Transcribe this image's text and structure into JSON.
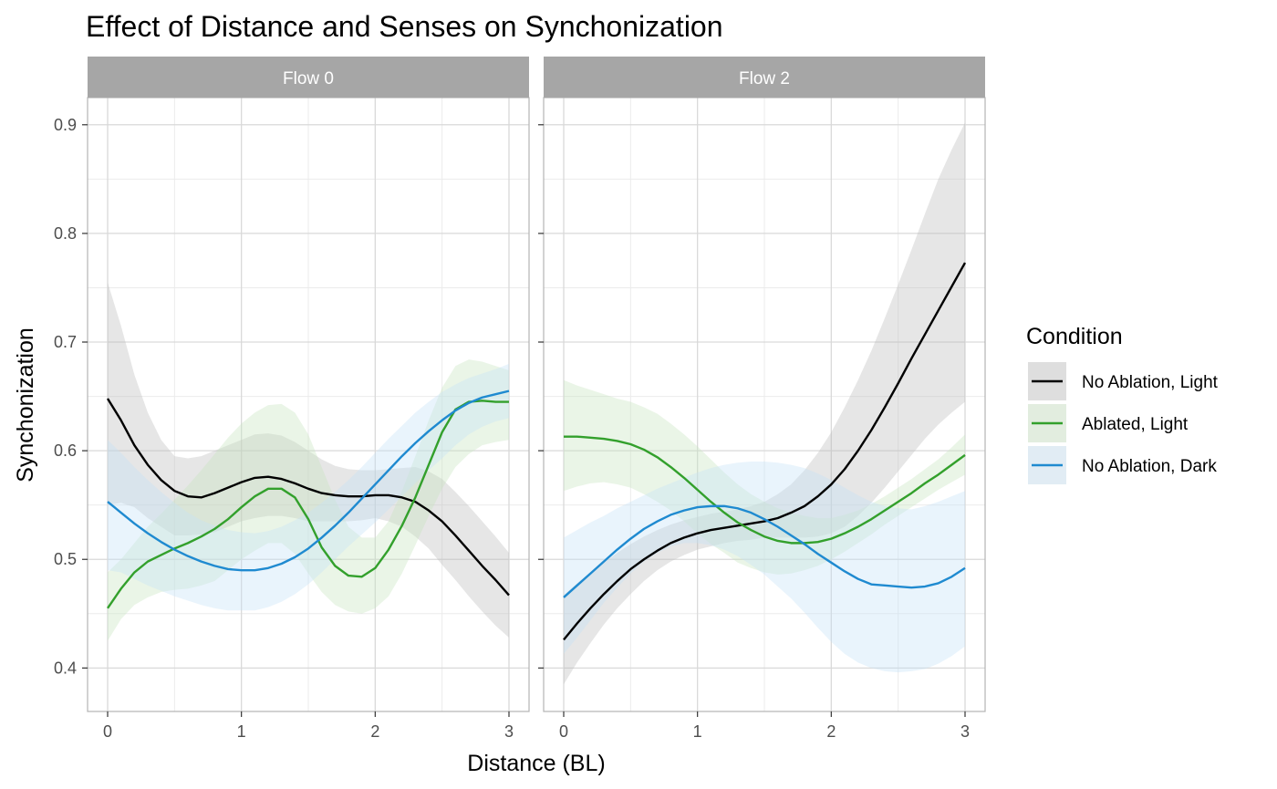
{
  "chart_data": {
    "type": "line",
    "title": "Effect of Distance and Senses on Synchonization",
    "xlabel": "Distance (BL)",
    "ylabel": "Synchonization",
    "xlim": [
      -0.15,
      3.15
    ],
    "ylim": [
      0.36,
      0.925
    ],
    "x_ticks": [
      0,
      1,
      2,
      3
    ],
    "y_ticks": [
      0.4,
      0.5,
      0.6,
      0.7,
      0.8,
      0.9
    ],
    "x_tick_labels": [
      "0",
      "1",
      "2",
      "3"
    ],
    "y_tick_labels": [
      "0.4",
      "0.5",
      "0.6",
      "0.7",
      "0.8",
      "0.9"
    ],
    "grid": true,
    "legend": {
      "title": "Condition",
      "position": "right",
      "entries": [
        "No Ablation, Light",
        "Ablated, Light",
        "No Ablation, Dark"
      ]
    },
    "series_colors": {
      "No Ablation, Light": "#000000",
      "Ablated, Light": "#33a02c",
      "No Ablation, Dark": "#1f8ad0"
    },
    "band_colors": {
      "No Ablation, Light": "#bdbdbd",
      "Ablated, Light": "#c8e6c0",
      "No Ablation, Dark": "#c4e2f7"
    },
    "panels": [
      {
        "name": "Flow 0",
        "series": [
          {
            "name": "No Ablation, Light",
            "x": [
              0,
              0.1,
              0.2,
              0.3,
              0.4,
              0.5,
              0.6,
              0.7,
              0.8,
              0.9,
              1.0,
              1.1,
              1.2,
              1.3,
              1.4,
              1.5,
              1.6,
              1.7,
              1.8,
              1.9,
              2.0,
              2.1,
              2.2,
              2.3,
              2.4,
              2.5,
              2.6,
              2.7,
              2.8,
              2.9,
              3.0
            ],
            "y": [
              0.648,
              0.628,
              0.605,
              0.587,
              0.573,
              0.563,
              0.558,
              0.557,
              0.561,
              0.566,
              0.571,
              0.575,
              0.576,
              0.574,
              0.57,
              0.565,
              0.561,
              0.559,
              0.558,
              0.558,
              0.559,
              0.559,
              0.557,
              0.553,
              0.545,
              0.535,
              0.522,
              0.508,
              0.494,
              0.481,
              0.467
            ],
            "lower": [
              0.55,
              0.552,
              0.548,
              0.538,
              0.53,
              0.522,
              0.522,
              0.523,
              0.525,
              0.53,
              0.535,
              0.538,
              0.54,
              0.54,
              0.538,
              0.535,
              0.535,
              0.535,
              0.535,
              0.536,
              0.538,
              0.535,
              0.53,
              0.521,
              0.51,
              0.495,
              0.481,
              0.466,
              0.452,
              0.439,
              0.428
            ],
            "upper": [
              0.755,
              0.715,
              0.67,
              0.635,
              0.61,
              0.595,
              0.593,
              0.595,
              0.6,
              0.605,
              0.61,
              0.615,
              0.616,
              0.614,
              0.608,
              0.6,
              0.592,
              0.586,
              0.583,
              0.582,
              0.582,
              0.583,
              0.584,
              0.585,
              0.581,
              0.574,
              0.562,
              0.549,
              0.535,
              0.521,
              0.506
            ]
          },
          {
            "name": "Ablated, Light",
            "x": [
              0,
              0.1,
              0.2,
              0.3,
              0.4,
              0.5,
              0.6,
              0.7,
              0.8,
              0.9,
              1.0,
              1.1,
              1.2,
              1.3,
              1.4,
              1.5,
              1.6,
              1.7,
              1.8,
              1.9,
              2.0,
              2.1,
              2.2,
              2.3,
              2.4,
              2.5,
              2.6,
              2.7,
              2.8,
              2.9,
              3.0
            ],
            "y": [
              0.455,
              0.473,
              0.488,
              0.498,
              0.504,
              0.51,
              0.515,
              0.521,
              0.528,
              0.537,
              0.548,
              0.558,
              0.565,
              0.565,
              0.557,
              0.537,
              0.511,
              0.494,
              0.485,
              0.484,
              0.492,
              0.509,
              0.531,
              0.557,
              0.587,
              0.617,
              0.638,
              0.645,
              0.646,
              0.645,
              0.645
            ],
            "lower": [
              0.425,
              0.445,
              0.458,
              0.465,
              0.47,
              0.472,
              0.473,
              0.476,
              0.48,
              0.49,
              0.5,
              0.508,
              0.515,
              0.515,
              0.505,
              0.487,
              0.47,
              0.458,
              0.452,
              0.45,
              0.455,
              0.466,
              0.487,
              0.513,
              0.54,
              0.565,
              0.585,
              0.597,
              0.605,
              0.608,
              0.61
            ],
            "upper": [
              0.488,
              0.5,
              0.515,
              0.53,
              0.542,
              0.555,
              0.568,
              0.582,
              0.597,
              0.612,
              0.625,
              0.635,
              0.642,
              0.643,
              0.635,
              0.615,
              0.585,
              0.555,
              0.53,
              0.52,
              0.52,
              0.535,
              0.563,
              0.595,
              0.628,
              0.658,
              0.678,
              0.684,
              0.682,
              0.678,
              0.674
            ]
          },
          {
            "name": "No Ablation, Dark",
            "x": [
              0,
              0.1,
              0.2,
              0.3,
              0.4,
              0.5,
              0.6,
              0.7,
              0.8,
              0.9,
              1.0,
              1.1,
              1.2,
              1.3,
              1.4,
              1.5,
              1.6,
              1.7,
              1.8,
              1.9,
              2.0,
              2.1,
              2.2,
              2.3,
              2.4,
              2.5,
              2.6,
              2.7,
              2.8,
              2.9,
              3.0
            ],
            "y": [
              0.553,
              0.543,
              0.533,
              0.524,
              0.516,
              0.509,
              0.503,
              0.498,
              0.494,
              0.491,
              0.49,
              0.49,
              0.492,
              0.496,
              0.502,
              0.51,
              0.52,
              0.531,
              0.543,
              0.556,
              0.569,
              0.582,
              0.595,
              0.607,
              0.618,
              0.628,
              0.637,
              0.644,
              0.649,
              0.652,
              0.655
            ],
            "lower": [
              0.49,
              0.488,
              0.482,
              0.476,
              0.471,
              0.466,
              0.462,
              0.458,
              0.455,
              0.453,
              0.453,
              0.453,
              0.456,
              0.461,
              0.468,
              0.477,
              0.488,
              0.5,
              0.512,
              0.523,
              0.534,
              0.546,
              0.558,
              0.57,
              0.582,
              0.593,
              0.605,
              0.615,
              0.622,
              0.627,
              0.63
            ],
            "upper": [
              0.61,
              0.598,
              0.585,
              0.573,
              0.562,
              0.552,
              0.543,
              0.536,
              0.531,
              0.527,
              0.525,
              0.524,
              0.526,
              0.53,
              0.536,
              0.543,
              0.552,
              0.562,
              0.573,
              0.585,
              0.598,
              0.611,
              0.623,
              0.635,
              0.645,
              0.654,
              0.661,
              0.667,
              0.671,
              0.675,
              0.68
            ]
          }
        ]
      },
      {
        "name": "Flow 2",
        "series": [
          {
            "name": "No Ablation, Light",
            "x": [
              0,
              0.1,
              0.2,
              0.3,
              0.4,
              0.5,
              0.6,
              0.7,
              0.8,
              0.9,
              1.0,
              1.1,
              1.2,
              1.3,
              1.4,
              1.5,
              1.6,
              1.7,
              1.8,
              1.9,
              2.0,
              2.1,
              2.2,
              2.3,
              2.4,
              2.5,
              2.6,
              2.7,
              2.8,
              2.9,
              3.0
            ],
            "y": [
              0.426,
              0.441,
              0.455,
              0.468,
              0.48,
              0.491,
              0.5,
              0.508,
              0.515,
              0.52,
              0.524,
              0.527,
              0.529,
              0.531,
              0.533,
              0.535,
              0.538,
              0.543,
              0.549,
              0.558,
              0.569,
              0.583,
              0.6,
              0.619,
              0.64,
              0.662,
              0.685,
              0.707,
              0.729,
              0.751,
              0.773
            ],
            "lower": [
              0.385,
              0.405,
              0.423,
              0.44,
              0.455,
              0.468,
              0.48,
              0.49,
              0.498,
              0.504,
              0.509,
              0.512,
              0.515,
              0.517,
              0.518,
              0.52,
              0.52,
              0.52,
              0.52,
              0.521,
              0.524,
              0.53,
              0.54,
              0.552,
              0.566,
              0.581,
              0.596,
              0.611,
              0.624,
              0.635,
              0.645
            ],
            "upper": [
              0.467,
              0.478,
              0.488,
              0.497,
              0.506,
              0.514,
              0.521,
              0.527,
              0.532,
              0.536,
              0.539,
              0.542,
              0.544,
              0.546,
              0.549,
              0.553,
              0.56,
              0.569,
              0.582,
              0.598,
              0.617,
              0.64,
              0.665,
              0.692,
              0.722,
              0.753,
              0.785,
              0.818,
              0.85,
              0.877,
              0.902
            ]
          },
          {
            "name": "Ablated, Light",
            "x": [
              0,
              0.1,
              0.2,
              0.3,
              0.4,
              0.5,
              0.6,
              0.7,
              0.8,
              0.9,
              1.0,
              1.1,
              1.2,
              1.3,
              1.4,
              1.5,
              1.6,
              1.7,
              1.8,
              1.9,
              2.0,
              2.1,
              2.2,
              2.3,
              2.4,
              2.5,
              2.6,
              2.7,
              2.8,
              2.9,
              3.0
            ],
            "y": [
              0.613,
              0.613,
              0.612,
              0.611,
              0.609,
              0.606,
              0.601,
              0.594,
              0.585,
              0.575,
              0.564,
              0.553,
              0.543,
              0.534,
              0.527,
              0.521,
              0.517,
              0.515,
              0.515,
              0.516,
              0.519,
              0.524,
              0.53,
              0.537,
              0.545,
              0.553,
              0.561,
              0.57,
              0.578,
              0.587,
              0.596
            ],
            "lower": [
              0.563,
              0.567,
              0.57,
              0.571,
              0.569,
              0.566,
              0.56,
              0.553,
              0.545,
              0.535,
              0.524,
              0.514,
              0.506,
              0.497,
              0.492,
              0.488,
              0.486,
              0.487,
              0.49,
              0.494,
              0.5,
              0.507,
              0.515,
              0.523,
              0.532,
              0.54,
              0.548,
              0.556,
              0.564,
              0.571,
              0.578
            ],
            "upper": [
              0.665,
              0.66,
              0.656,
              0.652,
              0.648,
              0.645,
              0.64,
              0.634,
              0.625,
              0.615,
              0.604,
              0.592,
              0.58,
              0.569,
              0.56,
              0.553,
              0.547,
              0.543,
              0.54,
              0.538,
              0.538,
              0.541,
              0.545,
              0.551,
              0.558,
              0.566,
              0.574,
              0.583,
              0.592,
              0.603,
              0.615
            ]
          },
          {
            "name": "No Ablation, Dark",
            "x": [
              0,
              0.1,
              0.2,
              0.3,
              0.4,
              0.5,
              0.6,
              0.7,
              0.8,
              0.9,
              1.0,
              1.1,
              1.2,
              1.3,
              1.4,
              1.5,
              1.6,
              1.7,
              1.8,
              1.9,
              2.0,
              2.1,
              2.2,
              2.3,
              2.4,
              2.5,
              2.6,
              2.7,
              2.8,
              2.9,
              3.0
            ],
            "y": [
              0.465,
              0.476,
              0.487,
              0.498,
              0.509,
              0.519,
              0.528,
              0.535,
              0.541,
              0.545,
              0.548,
              0.549,
              0.549,
              0.547,
              0.543,
              0.537,
              0.53,
              0.522,
              0.514,
              0.505,
              0.497,
              0.489,
              0.482,
              0.477,
              0.476,
              0.475,
              0.474,
              0.475,
              0.478,
              0.484,
              0.492
            ],
            "lower": [
              0.413,
              0.428,
              0.444,
              0.46,
              0.474,
              0.487,
              0.498,
              0.506,
              0.512,
              0.515,
              0.515,
              0.513,
              0.509,
              0.503,
              0.495,
              0.486,
              0.475,
              0.464,
              0.451,
              0.437,
              0.424,
              0.413,
              0.405,
              0.4,
              0.397,
              0.396,
              0.397,
              0.399,
              0.404,
              0.411,
              0.42
            ],
            "upper": [
              0.52,
              0.527,
              0.534,
              0.54,
              0.547,
              0.553,
              0.559,
              0.565,
              0.57,
              0.575,
              0.58,
              0.584,
              0.587,
              0.589,
              0.59,
              0.59,
              0.589,
              0.587,
              0.584,
              0.579,
              0.573,
              0.566,
              0.559,
              0.553,
              0.549,
              0.547,
              0.546,
              0.549,
              0.553,
              0.558,
              0.563
            ]
          }
        ]
      }
    ]
  }
}
